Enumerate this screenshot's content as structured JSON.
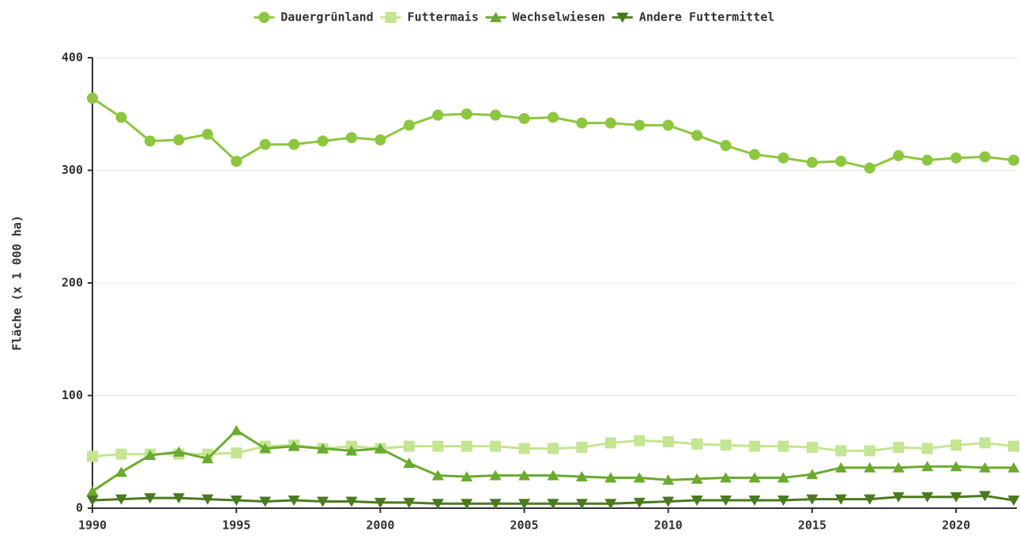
{
  "chart_data": {
    "type": "line",
    "y_label": "Fläche (x 1 000 ha)",
    "x": [
      1990,
      1991,
      1992,
      1993,
      1994,
      1995,
      1996,
      1997,
      1998,
      1999,
      2000,
      2001,
      2002,
      2003,
      2004,
      2005,
      2006,
      2007,
      2008,
      2009,
      2010,
      2011,
      2012,
      2013,
      2014,
      2015,
      2016,
      2017,
      2018,
      2019,
      2020,
      2021,
      2022
    ],
    "series": [
      {
        "name": "Dauergrünland",
        "color": "#8dc63f",
        "marker": "circle",
        "values": [
          364,
          347,
          326,
          327,
          332,
          308,
          323,
          323,
          326,
          329,
          327,
          340,
          349,
          350,
          349,
          346,
          347,
          342,
          342,
          340,
          340,
          331,
          322,
          314,
          311,
          307,
          308,
          302,
          313,
          309,
          311,
          312,
          309
        ]
      },
      {
        "name": "Futtermais",
        "color": "#c4e591",
        "marker": "square",
        "values": [
          46,
          48,
          48,
          48,
          48,
          49,
          55,
          56,
          53,
          55,
          53,
          55,
          55,
          55,
          55,
          53,
          53,
          54,
          58,
          60,
          59,
          57,
          56,
          55,
          55,
          54,
          51,
          51,
          54,
          53,
          56,
          58,
          55
        ]
      },
      {
        "name": "Wechselwiesen",
        "color": "#6aaa2e",
        "marker": "triangle-up",
        "values": [
          15,
          32,
          47,
          50,
          44,
          69,
          53,
          55,
          53,
          51,
          53,
          40,
          29,
          28,
          29,
          29,
          29,
          28,
          27,
          27,
          25,
          26,
          27,
          27,
          27,
          30,
          36,
          36,
          36,
          37,
          37,
          36,
          36
        ]
      },
      {
        "name": "Andere Futtermittel",
        "color": "#4a7a1e",
        "marker": "triangle-down",
        "values": [
          7,
          8,
          9,
          9,
          8,
          7,
          6,
          7,
          6,
          6,
          5,
          5,
          4,
          4,
          4,
          4,
          4,
          4,
          4,
          5,
          6,
          7,
          7,
          7,
          7,
          8,
          8,
          8,
          10,
          10,
          10,
          11,
          7
        ]
      }
    ],
    "xlim": [
      1990,
      2022
    ],
    "xticks": [
      1990,
      1995,
      2000,
      2005,
      2010,
      2015,
      2020
    ],
    "ylim": [
      0,
      400
    ],
    "yticks": [
      0,
      100,
      200,
      300,
      400
    ],
    "grid": true,
    "legend": "top"
  }
}
